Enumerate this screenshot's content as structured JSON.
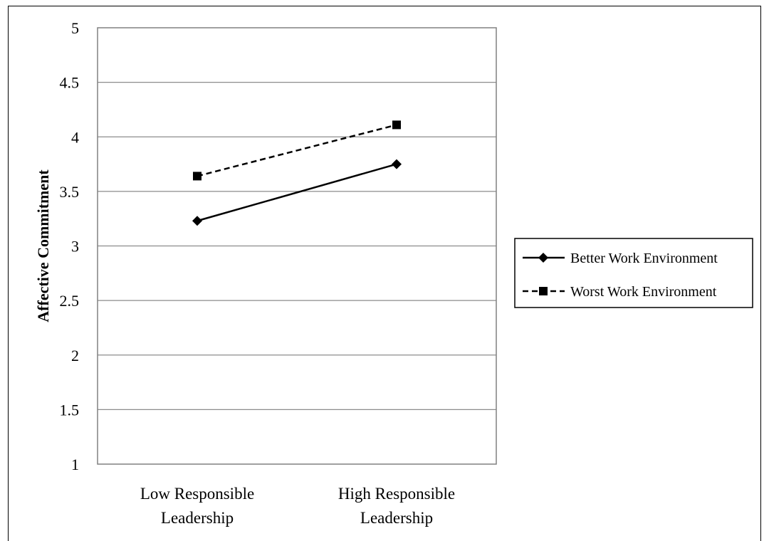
{
  "chart_data": {
    "type": "line",
    "ylabel": "Affective Commitment",
    "xlabel": "",
    "categories": [
      "Low Responsible Leadership",
      "High Responsible Leadership"
    ],
    "category_lines": [
      [
        "Low Responsible",
        "Leadership"
      ],
      [
        "High Responsible",
        "Leadership"
      ]
    ],
    "ylim": [
      1,
      5
    ],
    "yticks": [
      1,
      1.5,
      2,
      2.5,
      3,
      3.5,
      4,
      4.5,
      5
    ],
    "ytick_labels": [
      "1",
      "1.5",
      "2",
      "2.5",
      "3",
      "3.5",
      "4",
      "4.5",
      "5"
    ],
    "grid": true,
    "legend_position": "right",
    "series": [
      {
        "name": "Better Work Environment",
        "values": [
          3.23,
          3.75
        ],
        "line_style": "solid",
        "marker": "diamond",
        "color": "#000000"
      },
      {
        "name": "Worst Work Environment",
        "values": [
          3.64,
          4.11
        ],
        "line_style": "dashed",
        "marker": "square",
        "color": "#000000"
      }
    ]
  }
}
